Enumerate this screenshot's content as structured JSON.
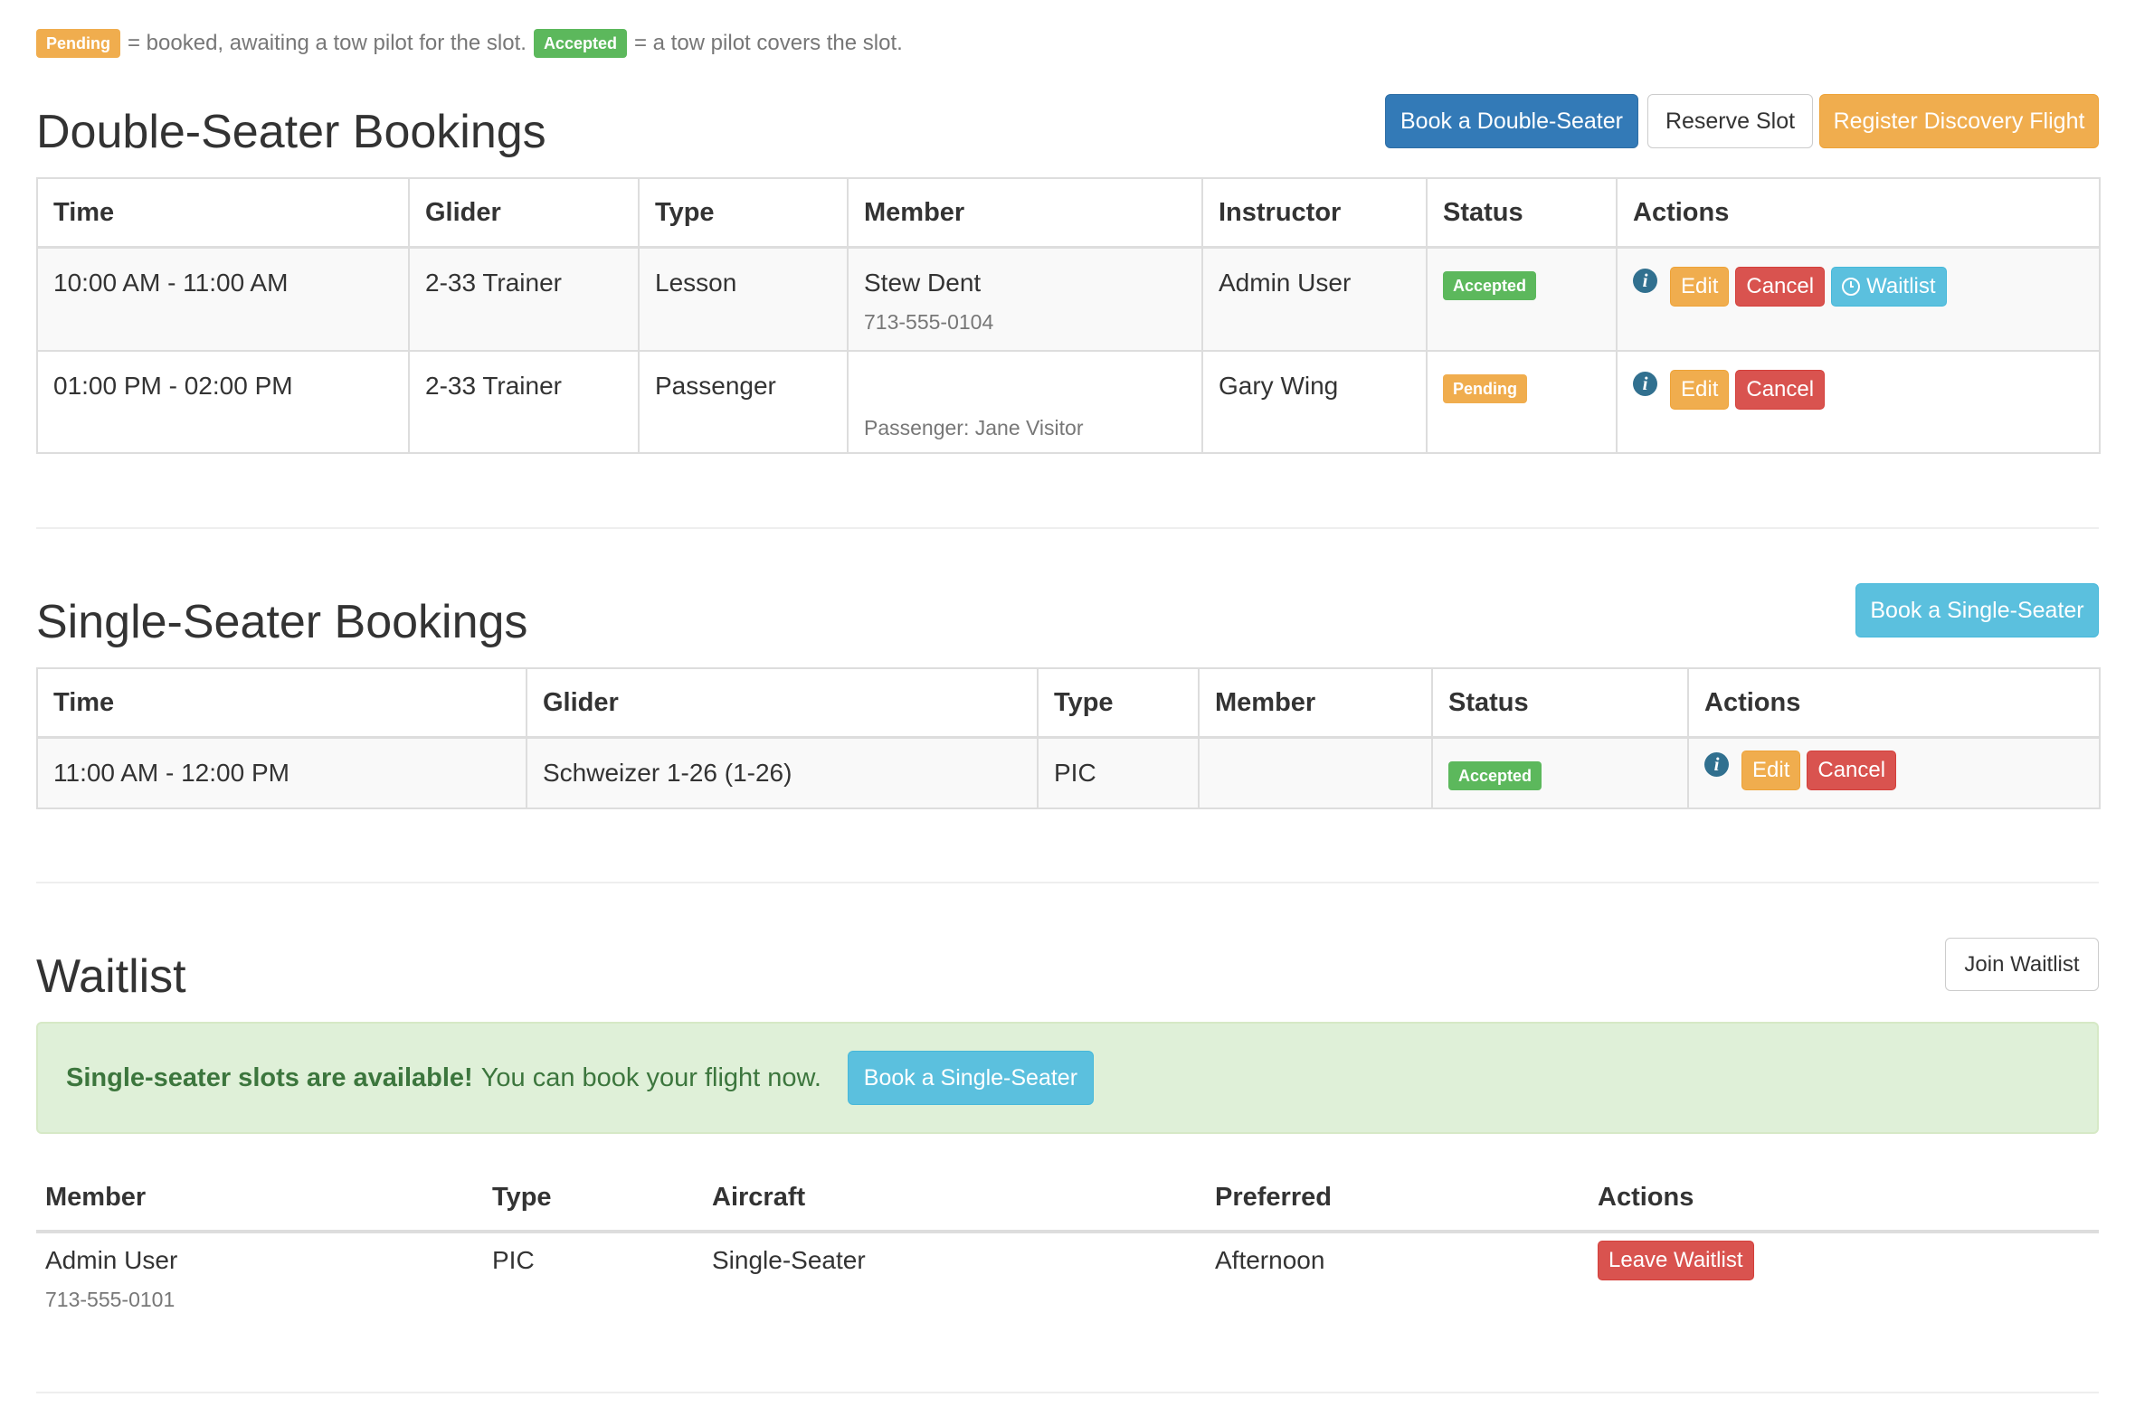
{
  "legend": {
    "pending_label": "Pending",
    "pending_text": "= booked, awaiting a tow pilot for the slot.",
    "accepted_label": "Accepted",
    "accepted_text": "= a tow pilot covers the slot."
  },
  "double": {
    "title": "Double-Seater Bookings",
    "buttons": {
      "book": "Book a Double-Seater",
      "reserve": "Reserve Slot",
      "discovery": "Register Discovery Flight"
    },
    "headers": [
      "Time",
      "Glider",
      "Type",
      "Member",
      "Instructor",
      "Status",
      "Actions"
    ],
    "rows": [
      {
        "time": "10:00 AM - 11:00 AM",
        "glider": "2-33 Trainer",
        "type": "Lesson",
        "member": "Stew Dent",
        "member_sub": "713-555-0104",
        "instructor": "Admin User",
        "status": "Accepted",
        "actions": {
          "edit": "Edit",
          "cancel": "Cancel",
          "waitlist": "Waitlist"
        }
      },
      {
        "time": "01:00 PM - 02:00 PM",
        "glider": "2-33 Trainer",
        "type": "Passenger",
        "member": "",
        "member_sub": "Passenger: Jane Visitor",
        "instructor": "Gary Wing",
        "status": "Pending",
        "actions": {
          "edit": "Edit",
          "cancel": "Cancel"
        }
      }
    ]
  },
  "single": {
    "title": "Single-Seater Bookings",
    "book_button": "Book a Single-Seater",
    "headers": [
      "Time",
      "Glider",
      "Type",
      "Member",
      "Status",
      "Actions"
    ],
    "rows": [
      {
        "time": "11:00 AM - 12:00 PM",
        "glider": "Schweizer 1-26 (1-26)",
        "type": "PIC",
        "member": "",
        "status": "Accepted",
        "actions": {
          "edit": "Edit",
          "cancel": "Cancel"
        }
      }
    ]
  },
  "waitlist": {
    "title": "Waitlist",
    "join_button": "Join Waitlist",
    "alert": {
      "strong": "Single-seater slots are available!",
      "text": "You can book your flight now.",
      "button": "Book a Single-Seater"
    },
    "headers": [
      "Member",
      "Type",
      "Aircraft",
      "Preferred",
      "Actions"
    ],
    "rows": [
      {
        "member": "Admin User",
        "member_sub": "713-555-0101",
        "type": "PIC",
        "aircraft": "Single-Seater",
        "preferred": "Afternoon",
        "action": "Leave Waitlist"
      }
    ]
  },
  "colors": {
    "primary": "#337ab7",
    "warning": "#f0ad4e",
    "success": "#5cb85c",
    "danger": "#d9534f",
    "info": "#5bc0de"
  }
}
